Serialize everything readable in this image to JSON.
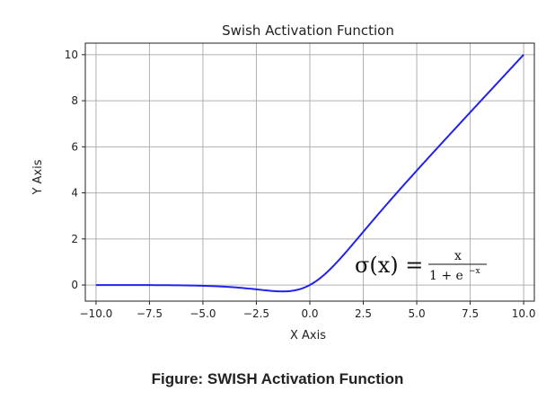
{
  "figure_caption": "Figure: SWISH Activation Function",
  "chart_data": {
    "type": "line",
    "title": "Swish Activation Function",
    "xlabel": "X Axis",
    "ylabel": "Y Axis",
    "xlim": [
      -10.5,
      10.5
    ],
    "ylim": [
      -0.7,
      10.5
    ],
    "xticks": [
      -10.0,
      -7.5,
      -5.0,
      -2.5,
      0.0,
      2.5,
      5.0,
      7.5,
      10.0
    ],
    "xtick_labels": [
      "−10.0",
      "−7.5",
      "−5.0",
      "−2.5",
      "0.0",
      "2.5",
      "5.0",
      "7.5",
      "10.0"
    ],
    "yticks": [
      0,
      2,
      4,
      6,
      8,
      10
    ],
    "ytick_labels": [
      "0",
      "2",
      "4",
      "6",
      "8",
      "10"
    ],
    "grid": true,
    "line_color": "#2222ee",
    "function": "x / (1 + exp(-x))",
    "x_range": [
      -10,
      10
    ],
    "annotation": {
      "lhs": "σ(x) =",
      "numerator": "x",
      "denominator": "1 + e",
      "exponent": "−x"
    }
  }
}
